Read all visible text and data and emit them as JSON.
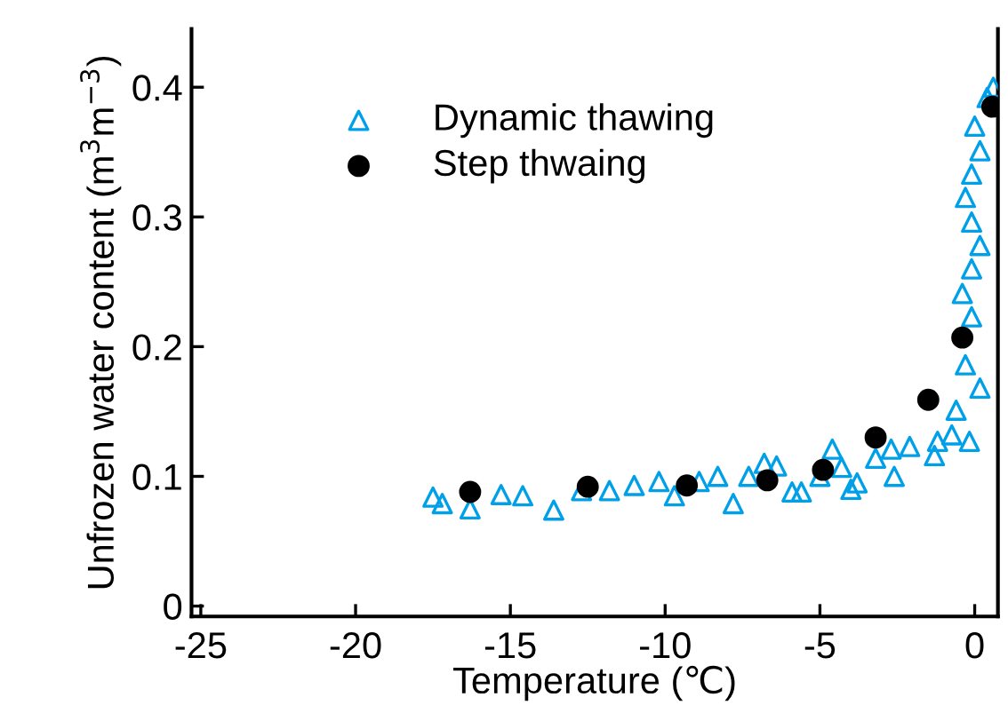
{
  "chart_data": {
    "type": "scatter",
    "xlabel": "Temperature (℃)",
    "ylabel": "Unfrozen water content (m$^{3}$m$^{−3}$)",
    "xlim": [
      -25.3,
      0.75
    ],
    "ylim": [
      -0.008,
      0.445
    ],
    "xticks": [
      -25,
      -20,
      -15,
      -10,
      -5,
      0
    ],
    "yticks": [
      0,
      0.1,
      0.2,
      0.3,
      0.4
    ],
    "grid": false,
    "legend": "top left",
    "series": [
      {
        "name": "Dynamic thawing",
        "color": "#00a0e9",
        "marker": "triangle",
        "x": [
          -17.5,
          -17.2,
          -16.3,
          -15.3,
          -14.6,
          -13.6,
          -12.7,
          -11.8,
          -11.0,
          -10.2,
          -9.7,
          -8.9,
          -8.3,
          -7.8,
          -7.3,
          -6.8,
          -6.4,
          -5.9,
          -5.6,
          -5.0,
          -4.6,
          -4.3,
          -4.0,
          -3.8,
          -3.2,
          -2.6,
          -2.7,
          -2.1,
          -1.3,
          -1.2,
          -0.74,
          -0.6,
          -0.17,
          -0.3,
          0.17,
          -0.1,
          -0.4,
          -0.1,
          0.17,
          -0.1,
          -0.3,
          -0.1,
          0.17,
          0.0,
          0.4,
          0.6
        ],
        "values": [
          0.084,
          0.079,
          0.075,
          0.086,
          0.085,
          0.074,
          0.089,
          0.089,
          0.093,
          0.096,
          0.085,
          0.096,
          0.1,
          0.079,
          0.1,
          0.11,
          0.108,
          0.088,
          0.088,
          0.1,
          0.121,
          0.107,
          0.09,
          0.095,
          0.114,
          0.1,
          0.121,
          0.123,
          0.116,
          0.127,
          0.132,
          0.151,
          0.127,
          0.186,
          0.168,
          0.223,
          0.241,
          0.26,
          0.278,
          0.296,
          0.315,
          0.333,
          0.351,
          0.37,
          0.392,
          0.4
        ]
      },
      {
        "name": "Step thwaing",
        "color": "#000000",
        "marker": "circle",
        "x": [
          -16.3,
          -12.5,
          -9.3,
          -6.7,
          -4.9,
          -3.2,
          -1.5,
          -0.4,
          0.57
        ],
        "values": [
          0.088,
          0.092,
          0.093,
          0.097,
          0.105,
          0.13,
          0.159,
          0.207,
          0.385
        ]
      }
    ]
  }
}
